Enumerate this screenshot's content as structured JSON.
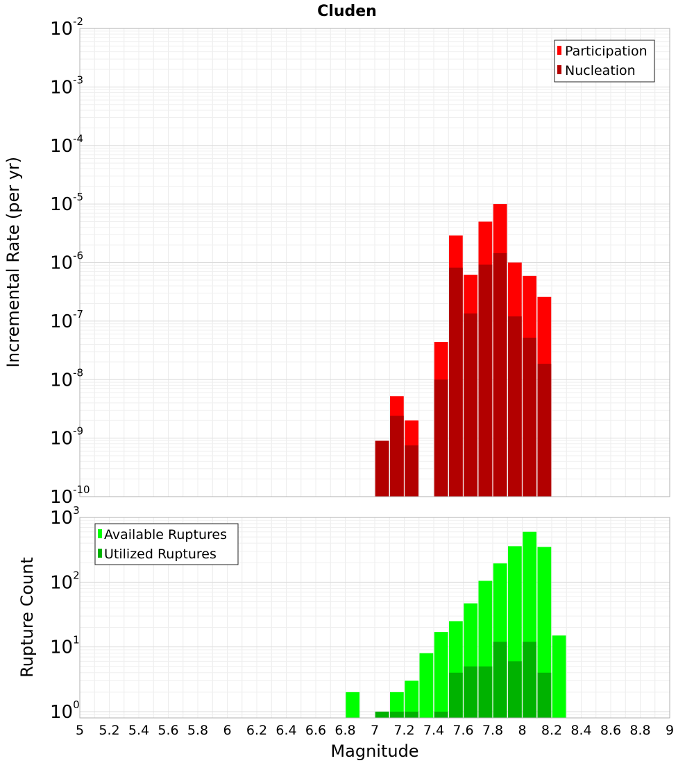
{
  "chart_data": {
    "type": "bar",
    "title": "Cluden",
    "xlabel": "Magnitude",
    "x_ticks": [
      "5",
      "5.2",
      "5.4",
      "5.6",
      "5.8",
      "6",
      "6.2",
      "6.4",
      "6.6",
      "6.8",
      "7",
      "7.2",
      "7.4",
      "7.6",
      "7.8",
      "8",
      "8.2",
      "8.4",
      "8.6",
      "8.8",
      "9"
    ],
    "xlim": [
      5,
      9
    ],
    "grid": true,
    "panels": [
      {
        "ylabel": "Incremental Rate (per yr)",
        "yscale": "log",
        "ylim": [
          1e-10,
          0.01
        ],
        "y_tick_exponents": [
          "-10",
          "-9",
          "-8",
          "-7",
          "-6",
          "-5",
          "-4",
          "-3",
          "-2"
        ],
        "legend_position": "top-right",
        "series": [
          {
            "name": "Participation",
            "color": "#ff0000",
            "x": [
              7.05,
              7.15,
              7.25,
              7.45,
              7.55,
              7.65,
              7.75,
              7.85,
              7.95,
              8.05,
              8.15
            ],
            "values": [
              9e-10,
              5.2e-09,
              2e-09,
              4.4e-08,
              2.9e-06,
              6.2e-07,
              5e-06,
              1e-05,
              1e-06,
              5.9e-07,
              2.6e-07
            ]
          },
          {
            "name": "Nucleation",
            "color": "#b20000",
            "x": [
              7.05,
              7.15,
              7.25,
              7.45,
              7.55,
              7.65,
              7.75,
              7.85,
              7.95,
              8.05,
              8.15
            ],
            "values": [
              9e-10,
              2.4e-09,
              7.5e-10,
              1e-08,
              8.2e-07,
              1.35e-07,
              9.2e-07,
              1.45e-06,
              1.2e-07,
              5.2e-08,
              1.85e-08
            ]
          }
        ]
      },
      {
        "ylabel": "Rupture Count",
        "yscale": "log",
        "ylim": [
          0.8,
          1000
        ],
        "y_tick_exponents": [
          "0",
          "1",
          "2",
          "3"
        ],
        "legend_position": "top-left",
        "series": [
          {
            "name": "Available Ruptures",
            "color": "#00ff00",
            "x": [
              6.85,
              7.05,
              7.15,
              7.25,
              7.35,
              7.45,
              7.55,
              7.65,
              7.75,
              7.85,
              7.95,
              8.05,
              8.15,
              8.25
            ],
            "values": [
              2,
              1,
              2,
              3,
              8,
              17,
              25,
              47,
              105,
              195,
              360,
              600,
              350,
              15
            ]
          },
          {
            "name": "Utilized Ruptures",
            "color": "#00b200",
            "x": [
              7.05,
              7.15,
              7.25,
              7.45,
              7.55,
              7.65,
              7.75,
              7.85,
              7.95,
              8.05,
              8.15
            ],
            "values": [
              1,
              1,
              1,
              1,
              4,
              5,
              5,
              12,
              6,
              12,
              4
            ]
          }
        ]
      }
    ]
  }
}
